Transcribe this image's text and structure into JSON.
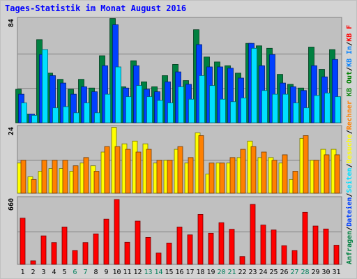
{
  "title": "Tages-Statistik im Monat August 2016",
  "chart_data": [
    {
      "type": "bar",
      "panel": "requests",
      "ymax_label": "84",
      "categories": [
        "1",
        "2",
        "3",
        "4",
        "5",
        "6",
        "7",
        "8",
        "9",
        "10",
        "11",
        "12",
        "13",
        "14",
        "15",
        "16",
        "17",
        "18",
        "19",
        "20",
        "21",
        "22",
        "23",
        "24",
        "25",
        "26",
        "27",
        "28",
        "29",
        "30",
        "31"
      ],
      "weekend_days": [
        "6",
        "7",
        "13",
        "14",
        "20",
        "21",
        "27",
        "28"
      ],
      "series": [
        {
          "name": "Anfragen",
          "color": "#008040",
          "values": [
            27,
            7,
            67,
            40,
            35,
            27,
            35,
            28,
            54,
            84,
            29,
            50,
            33,
            29,
            38,
            47,
            34,
            75,
            53,
            49,
            46,
            40,
            64,
            62,
            60,
            39,
            31,
            28,
            61,
            43,
            59
          ]
        },
        {
          "name": "Dateien",
          "color": "#0040ff",
          "values": [
            23,
            7,
            55,
            38,
            32,
            23,
            29,
            25,
            46,
            79,
            28,
            46,
            27,
            25,
            33,
            41,
            31,
            63,
            45,
            45,
            44,
            36,
            64,
            46,
            55,
            32,
            29,
            26,
            46,
            37,
            51
          ]
        },
        {
          "name": "Seiten",
          "color": "#00e0ff",
          "values": [
            16,
            6,
            59,
            12,
            13,
            8,
            16,
            8,
            23,
            45,
            21,
            30,
            21,
            18,
            16,
            29,
            19,
            38,
            30,
            19,
            17,
            20,
            60,
            26,
            23,
            23,
            16,
            12,
            22,
            24,
            21
          ]
        }
      ]
    },
    {
      "type": "bar",
      "panel": "visits",
      "ymax_label": "24",
      "categories": [
        "1",
        "2",
        "3",
        "4",
        "5",
        "6",
        "7",
        "8",
        "9",
        "10",
        "11",
        "12",
        "13",
        "14",
        "15",
        "16",
        "17",
        "18",
        "19",
        "20",
        "21",
        "22",
        "23",
        "24",
        "25",
        "26",
        "27",
        "28",
        "29",
        "30",
        "31"
      ],
      "series": [
        {
          "name": "Besuche",
          "color": "#ffff00",
          "values": [
            11,
            6,
            8,
            9,
            9,
            8,
            11,
            10,
            15,
            24,
            18,
            19,
            18,
            11,
            12,
            16,
            11,
            22,
            7,
            11,
            11,
            13,
            19,
            13,
            13,
            11,
            5,
            20,
            12,
            16,
            16
          ]
        },
        {
          "name": "Rechner",
          "color": "#ff8000",
          "values": [
            12,
            5,
            12,
            12,
            12,
            10,
            13,
            8,
            17,
            17,
            16,
            15,
            16,
            12,
            12,
            17,
            13,
            21,
            11,
            11,
            13,
            16,
            17,
            15,
            12,
            14,
            8,
            21,
            12,
            14,
            14
          ]
        }
      ]
    },
    {
      "type": "bar",
      "panel": "kilobytes",
      "ymax_label": "660",
      "categories": [
        "1",
        "2",
        "3",
        "4",
        "5",
        "6",
        "7",
        "8",
        "9",
        "10",
        "11",
        "12",
        "13",
        "14",
        "15",
        "16",
        "17",
        "18",
        "19",
        "20",
        "21",
        "22",
        "23",
        "24",
        "25",
        "26",
        "27",
        "28",
        "29",
        "30",
        "31"
      ],
      "series": [
        {
          "name": "KB F",
          "color": "#ff0000",
          "values": [
            470,
            36,
            290,
            222,
            380,
            140,
            222,
            310,
            460,
            660,
            225,
            440,
            274,
            115,
            217,
            380,
            300,
            508,
            317,
            424,
            357,
            80,
            610,
            400,
            350,
            190,
            140,
            530,
            390,
            360,
            195
          ]
        }
      ]
    }
  ],
  "right_legend": [
    {
      "text": "Anfragen",
      "color": "#008040"
    },
    {
      "text": "/",
      "color": "#000000"
    },
    {
      "text": "Dateien",
      "color": "#0040ff"
    },
    {
      "text": "/",
      "color": "#000000"
    },
    {
      "text": "Seiten",
      "color": "#00e0ff"
    },
    {
      "text": "/",
      "color": "#000000"
    },
    {
      "text": "Besuche",
      "color": "#ffff00"
    },
    {
      "text": "/",
      "color": "#000000"
    },
    {
      "text": "Rechner",
      "color": "#ff8000"
    },
    {
      "text": " ",
      "color": "#000000"
    },
    {
      "text": "KB Out",
      "color": "#008000"
    },
    {
      "text": "/",
      "color": "#000000"
    },
    {
      "text": "KB In",
      "color": "#0080ff"
    },
    {
      "text": "/",
      "color": "#000000"
    },
    {
      "text": "KB F",
      "color": "#ff0000"
    }
  ]
}
